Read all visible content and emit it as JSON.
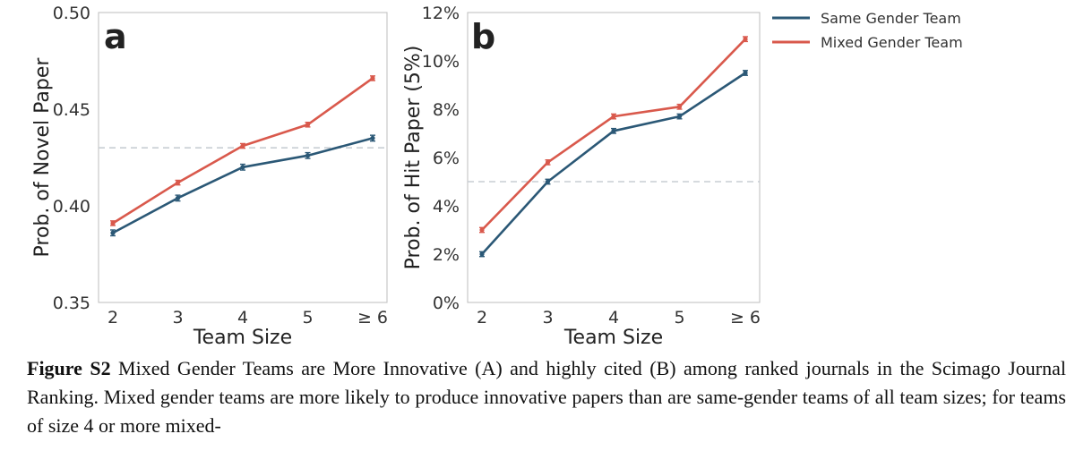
{
  "chart_data": [
    {
      "type": "line",
      "panel": "a",
      "title": "",
      "xlabel": "Team Size",
      "ylabel": "Prob. of Novel Paper",
      "categories": [
        "2",
        "3",
        "4",
        "5",
        "≥ 6"
      ],
      "ylim": [
        0.35,
        0.5
      ],
      "yticks": [
        0.35,
        0.4,
        0.45,
        0.5
      ],
      "ytick_labels": [
        "0.35",
        "0.40",
        "0.45",
        "0.50"
      ],
      "reference_line": 0.43,
      "series": [
        {
          "name": "Same Gender Team",
          "color": "#2b5876",
          "values": [
            0.386,
            0.404,
            0.42,
            0.426,
            0.435
          ],
          "errors": [
            0.0015,
            0.0015,
            0.0015,
            0.0015,
            0.0015
          ]
        },
        {
          "name": "Mixed Gender Team",
          "color": "#d9594c",
          "values": [
            0.391,
            0.412,
            0.431,
            0.442,
            0.466
          ],
          "errors": [
            0.0012,
            0.0012,
            0.0012,
            0.0012,
            0.0012
          ]
        }
      ]
    },
    {
      "type": "line",
      "panel": "b",
      "title": "",
      "xlabel": "Team Size",
      "ylabel": "Prob. of Hit Paper (5%)",
      "categories": [
        "2",
        "3",
        "4",
        "5",
        "≥ 6"
      ],
      "ylim": [
        0,
        12
      ],
      "yticks": [
        0,
        2,
        4,
        6,
        8,
        10,
        12
      ],
      "ytick_labels": [
        "0%",
        "2%",
        "4%",
        "6%",
        "8%",
        "10%",
        "12%"
      ],
      "reference_line": 5.0,
      "series": [
        {
          "name": "Same Gender Team",
          "color": "#2b5876",
          "values": [
            2.0,
            5.0,
            7.1,
            7.7,
            9.5
          ],
          "errors": [
            0.1,
            0.1,
            0.1,
            0.1,
            0.1
          ]
        },
        {
          "name": "Mixed Gender Team",
          "color": "#d9594c",
          "values": [
            3.0,
            5.8,
            7.7,
            8.1,
            10.9
          ],
          "errors": [
            0.1,
            0.1,
            0.1,
            0.1,
            0.1
          ]
        }
      ]
    }
  ],
  "legend": {
    "placement": "top-right",
    "items": [
      {
        "label": "Same Gender Team",
        "color": "#2b5876"
      },
      {
        "label": "Mixed Gender Team",
        "color": "#d9594c"
      }
    ]
  },
  "caption": {
    "label": "Figure S2",
    "text": " Mixed Gender Teams are More Innovative (A) and highly cited (B) among ranked journals in the Scimago Journal Ranking. Mixed gender teams are more likely to produce innovative papers than are same-gender teams of all team sizes; for teams of size 4 or more mixed-"
  }
}
